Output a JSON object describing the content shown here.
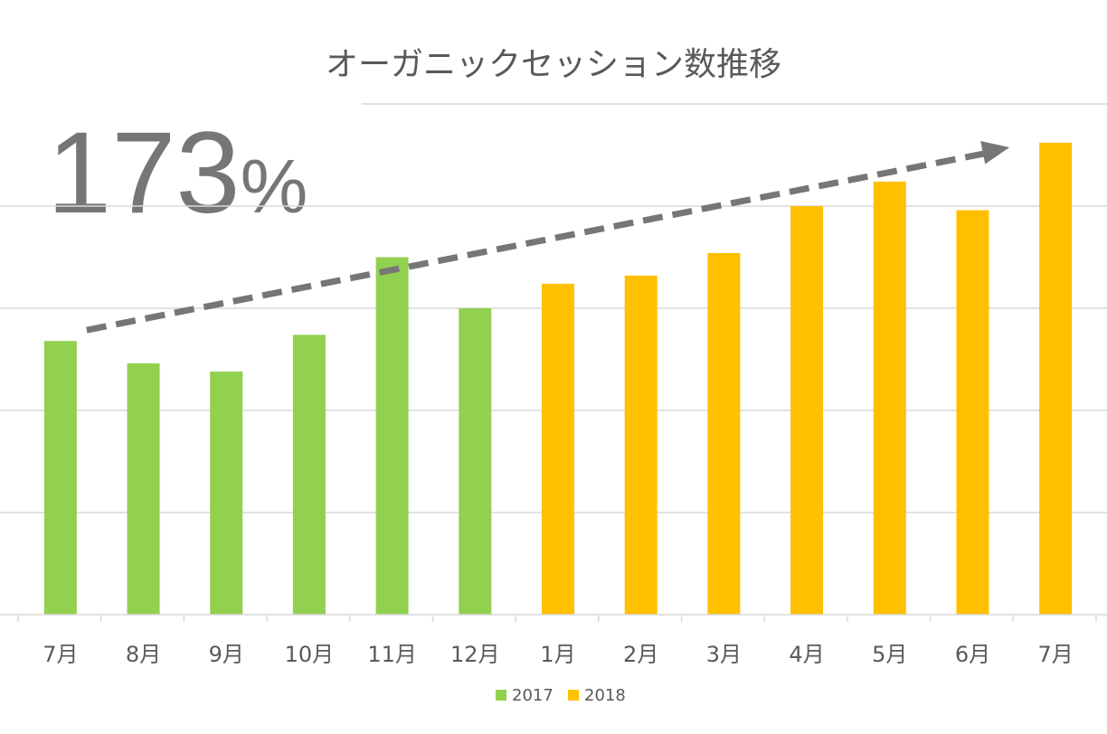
{
  "chart_data": {
    "type": "bar",
    "title": "オーガニックセッション数推移",
    "annotation": {
      "value": "173",
      "unit": "%"
    },
    "categories": [
      "7月",
      "8月",
      "9月",
      "10月",
      "11月",
      "12月",
      "1月",
      "2月",
      "3月",
      "4月",
      "5月",
      "6月",
      "7月"
    ],
    "values": [
      1.34,
      1.23,
      1.19,
      1.37,
      1.75,
      1.5,
      1.62,
      1.66,
      1.77,
      2.0,
      2.12,
      1.98,
      2.31
    ],
    "series_assignment": [
      "2017",
      "2017",
      "2017",
      "2017",
      "2017",
      "2017",
      "2018",
      "2018",
      "2018",
      "2018",
      "2018",
      "2018",
      "2018"
    ],
    "series": [
      {
        "name": "2017",
        "color": "#92D050"
      },
      {
        "name": "2018",
        "color": "#FFC000"
      }
    ],
    "ylim": [
      0,
      2.5
    ],
    "grid": true,
    "y_tick_labels_shown": false,
    "legend_position": "bottom",
    "trend_arrow": {
      "style": "dashed",
      "color": "#767676",
      "from_category": 0,
      "to_category": 12
    }
  }
}
